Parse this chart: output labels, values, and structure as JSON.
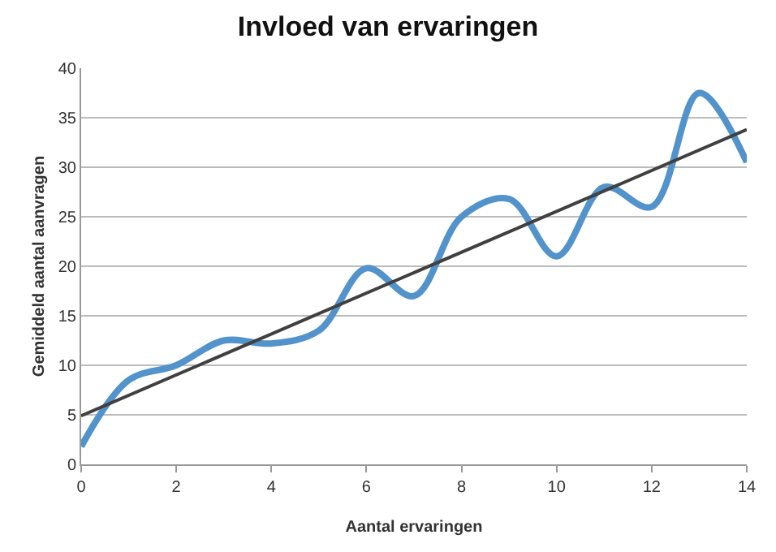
{
  "chart_data": {
    "type": "line",
    "title": "Invloed van ervaringen",
    "xlabel": "Aantal ervaringen",
    "ylabel": "Gemiddeld aantal aanvragen",
    "x": [
      0,
      1,
      2,
      3,
      4,
      5,
      6,
      7,
      8,
      9,
      10,
      11,
      12,
      13,
      14
    ],
    "series": [
      {
        "color": "#5393cc",
        "values": [
          1.8,
          8.5,
          10,
          12.5,
          12.2,
          13.5,
          19.8,
          17,
          25,
          26.8,
          21,
          28,
          26,
          37.5,
          30.5
        ]
      },
      {
        "type": "line",
        "color": "#404040",
        "x": [
          0,
          14
        ],
        "values": [
          4.9,
          33.8
        ]
      }
    ],
    "xlim": [
      0,
      14
    ],
    "xticks": [
      0,
      2,
      4,
      6,
      8,
      10,
      12,
      14
    ],
    "ylim": [
      0,
      40
    ],
    "yticks": [
      0,
      5,
      10,
      15,
      20,
      25,
      30,
      35,
      40
    ],
    "grid": "y",
    "marker": "none",
    "line_style": "solid"
  }
}
